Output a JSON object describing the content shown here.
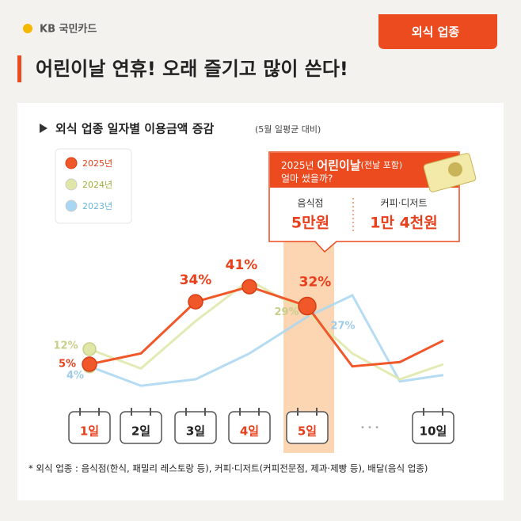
{
  "header": {
    "logo": "KB 국민카드",
    "badge": "외식 업종",
    "headline": "어린이날 연휴! 오래 즐기고 많이 쓴다!"
  },
  "callout": {
    "year": "2025년 ",
    "event": "어린이날",
    "note": "(전날 포함)",
    "question": "얼마 썼을까?",
    "items": [
      {
        "label": "음식점",
        "amount": "5만원"
      },
      {
        "label": "커피·디저트",
        "amount": "1만 4천원"
      }
    ]
  },
  "footnote": "* 외식 업종 : 음식점(한식, 패밀리 레스토랑 등), 커피·디저트(커피전문점, 제과·제빵 등), 배달(음식 업종)",
  "ellipsis": "• • •",
  "chart_data": {
    "type": "line",
    "title": "외식 업종 일자별 이용금액 증감",
    "subtitle": "(5월 일평균 대비)",
    "categories": [
      "1일",
      "2일",
      "3일",
      "4일",
      "5일",
      null,
      null,
      "10일"
    ],
    "ylim": [
      -10,
      50
    ],
    "series": [
      {
        "name": "2023년",
        "color": "#a9d6f2",
        "values": [
          4,
          -5,
          -2,
          10,
          27,
          37,
          -3,
          0
        ],
        "value_labels": [
          "4%",
          null,
          null,
          null,
          "27%",
          null,
          null,
          null
        ]
      },
      {
        "name": "2024년",
        "color": "#dfe6a6",
        "values": [
          12,
          3,
          25,
          44,
          29,
          10,
          -2,
          5
        ],
        "value_labels": [
          "12%",
          null,
          null,
          null,
          "29%",
          null,
          null,
          null
        ]
      },
      {
        "name": "2025년",
        "color": "#f0582a",
        "values": [
          5,
          10,
          34,
          41,
          32,
          4,
          6,
          16
        ],
        "value_labels": [
          "5%",
          null,
          "34%",
          "41%",
          "32%",
          null,
          null,
          null
        ]
      }
    ]
  }
}
